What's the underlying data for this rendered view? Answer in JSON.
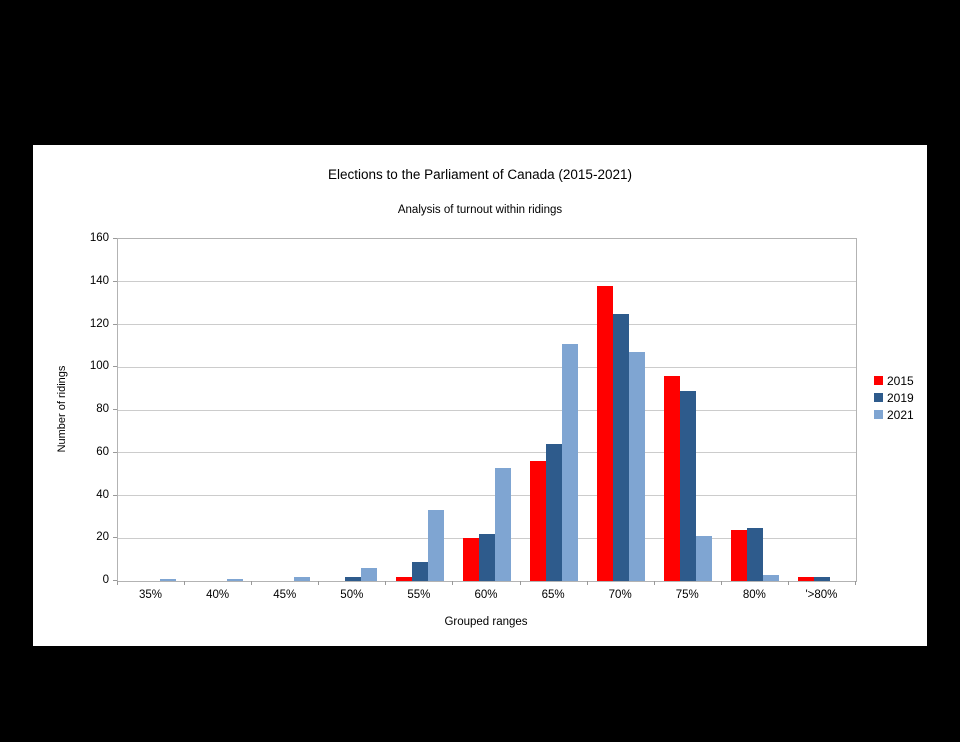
{
  "panel": {
    "background_color": "#000000",
    "chart_background_color": "#ffffff",
    "gridline_color": "#cccccc",
    "axis_color": "#999999",
    "text_color": "#000000"
  },
  "chart_data": {
    "type": "bar",
    "title": "Elections to the Parliament of Canada (2015-2021)",
    "subtitle": "Analysis of turnout within ridings",
    "xlabel": "Grouped ranges",
    "ylabel": "Number of ridings",
    "categories": [
      "35%",
      "40%",
      "45%",
      "50%",
      "55%",
      "60%",
      "65%",
      "70%",
      "75%",
      "80%",
      "'>80%"
    ],
    "series": [
      {
        "name": "2015",
        "color": "#ff0000",
        "values": [
          0,
          0,
          0,
          0,
          2,
          20,
          56,
          138,
          96,
          24,
          2
        ]
      },
      {
        "name": "2019",
        "color": "#2e5b8c",
        "values": [
          0,
          0,
          0,
          2,
          9,
          22,
          64,
          125,
          89,
          25,
          2
        ]
      },
      {
        "name": "2021",
        "color": "#7fa5d2",
        "values": [
          1,
          1,
          2,
          6,
          33,
          53,
          111,
          107,
          21,
          3,
          0
        ]
      }
    ],
    "ylim": [
      0,
      160
    ],
    "ytick_step": 20,
    "grid": true,
    "legend_position": "right"
  }
}
